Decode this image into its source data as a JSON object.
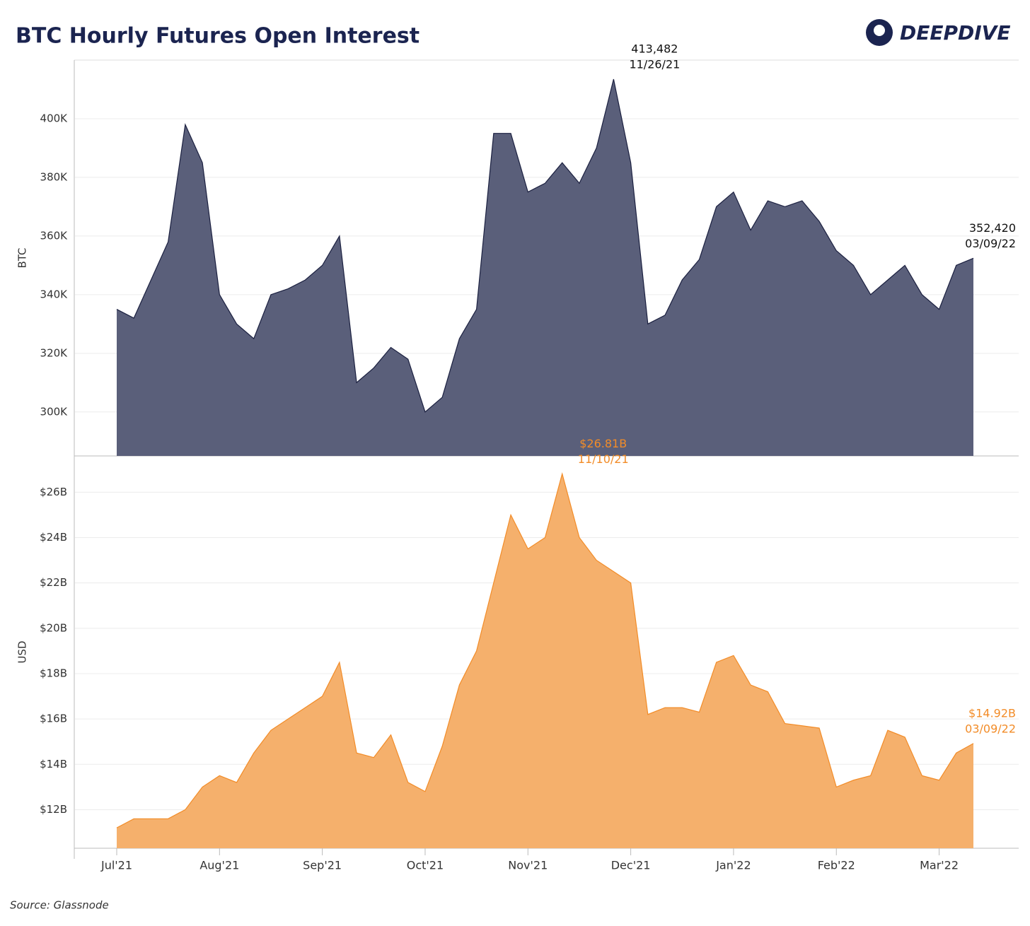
{
  "header": {
    "title": "BTC Hourly Futures Open Interest",
    "brand": "DEEPDIVE"
  },
  "footer": {
    "source": "Source: Glassnode"
  },
  "chart_data": [
    {
      "type": "area",
      "ylabel": "BTC",
      "color": "#5a5f7a",
      "line_color": "#1b2040",
      "ylim": [
        285000,
        420000
      ],
      "yticks": [
        {
          "value": 300000,
          "label": "300K"
        },
        {
          "value": 320000,
          "label": "320K"
        },
        {
          "value": 340000,
          "label": "340K"
        },
        {
          "value": 360000,
          "label": "360K"
        },
        {
          "value": 380000,
          "label": "380K"
        },
        {
          "value": 400000,
          "label": "400K"
        }
      ],
      "grid": true,
      "label_color": "#111111",
      "values": [
        335000,
        332000,
        345000,
        358000,
        398000,
        385000,
        340000,
        330000,
        325000,
        340000,
        342000,
        345000,
        350000,
        360000,
        310000,
        315000,
        322000,
        318000,
        300000,
        305000,
        325000,
        335000,
        395000,
        395000,
        375000,
        378000,
        385000,
        378000,
        390000,
        413482,
        385000,
        330000,
        333000,
        345000,
        352000,
        370000,
        375000,
        362000,
        372000,
        370000,
        372000,
        365000,
        355000,
        350000,
        340000,
        345000,
        350000,
        340000,
        335000,
        350000,
        352420
      ],
      "value_labels": [
        null,
        null,
        null,
        null,
        null,
        null,
        null,
        null,
        null,
        null,
        null,
        null,
        null,
        null,
        null,
        null,
        null,
        null,
        null,
        null,
        null,
        null,
        null,
        null,
        null,
        null,
        null,
        null,
        null,
        "413,482",
        null,
        null,
        null,
        null,
        null,
        null,
        null,
        null,
        null,
        null,
        null,
        null,
        null,
        null,
        null,
        null,
        null,
        null,
        null,
        null,
        "352,420"
      ],
      "point_dates": [
        null,
        null,
        null,
        null,
        null,
        null,
        null,
        null,
        null,
        null,
        null,
        null,
        null,
        null,
        null,
        null,
        null,
        null,
        null,
        null,
        null,
        null,
        null,
        null,
        null,
        null,
        null,
        null,
        null,
        "11/26/21",
        null,
        null,
        null,
        null,
        null,
        null,
        null,
        null,
        null,
        null,
        null,
        null,
        null,
        null,
        null,
        null,
        null,
        null,
        null,
        null,
        "03/09/22"
      ]
    },
    {
      "type": "area",
      "ylabel": "USD",
      "color": "#f5b06c",
      "line_color": "#f28c28",
      "ylim": [
        10.3,
        27.6
      ],
      "yticks": [
        {
          "value": 12,
          "label": "$12B"
        },
        {
          "value": 14,
          "label": "$14B"
        },
        {
          "value": 16,
          "label": "$16B"
        },
        {
          "value": 18,
          "label": "$18B"
        },
        {
          "value": 20,
          "label": "$20B"
        },
        {
          "value": 22,
          "label": "$22B"
        },
        {
          "value": 24,
          "label": "$24B"
        },
        {
          "value": 26,
          "label": "$26B"
        }
      ],
      "grid": true,
      "label_color": "#f28c28",
      "categories": [
        "Jul'21",
        null,
        null,
        null,
        null,
        null,
        "Aug'21",
        null,
        null,
        null,
        null,
        null,
        "Sep'21",
        null,
        null,
        null,
        null,
        null,
        "Oct'21",
        null,
        null,
        null,
        null,
        null,
        "Nov'21",
        null,
        null,
        null,
        null,
        null,
        "Dec'21",
        null,
        null,
        null,
        null,
        null,
        "Jan'22",
        null,
        null,
        null,
        null,
        null,
        "Feb'22",
        null,
        null,
        null,
        null,
        null,
        "Mar'22",
        null,
        null
      ],
      "values": [
        11.2,
        11.6,
        11.6,
        11.6,
        12.0,
        13.0,
        13.5,
        13.2,
        14.5,
        15.5,
        16.0,
        16.5,
        17.0,
        18.5,
        14.5,
        14.3,
        15.3,
        13.2,
        12.8,
        14.8,
        17.5,
        19.0,
        22.0,
        25.0,
        23.5,
        24.0,
        26.81,
        24.0,
        23.0,
        22.5,
        22.0,
        16.2,
        16.5,
        16.5,
        16.3,
        18.5,
        18.8,
        17.5,
        17.2,
        15.8,
        15.7,
        15.6,
        13.0,
        13.3,
        13.5,
        15.5,
        15.2,
        13.5,
        13.3,
        14.5,
        14.92
      ],
      "value_labels": [
        null,
        null,
        null,
        null,
        null,
        null,
        null,
        null,
        null,
        null,
        null,
        null,
        null,
        null,
        null,
        null,
        null,
        null,
        null,
        null,
        null,
        null,
        null,
        null,
        null,
        null,
        "$26.81B",
        null,
        null,
        null,
        null,
        null,
        null,
        null,
        null,
        null,
        null,
        null,
        null,
        null,
        null,
        null,
        null,
        null,
        null,
        null,
        null,
        null,
        null,
        null,
        "$14.92B"
      ],
      "point_dates": [
        null,
        null,
        null,
        null,
        null,
        null,
        null,
        null,
        null,
        null,
        null,
        null,
        null,
        null,
        null,
        null,
        null,
        null,
        null,
        null,
        null,
        null,
        null,
        null,
        null,
        null,
        "11/10/21",
        null,
        null,
        null,
        null,
        null,
        null,
        null,
        null,
        null,
        null,
        null,
        null,
        null,
        null,
        null,
        null,
        null,
        null,
        null,
        null,
        null,
        null,
        null,
        "03/09/22"
      ]
    }
  ]
}
